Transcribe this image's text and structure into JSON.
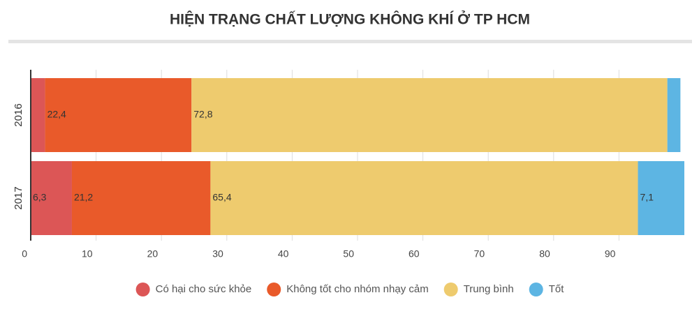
{
  "chart_data": {
    "type": "stacked-bar-horizontal",
    "title": "HIỆN TRẠNG CHẤT LƯỢNG KHÔNG KHÍ Ở TP HCM",
    "categories": [
      "2016",
      "2017"
    ],
    "series": [
      {
        "name": "Có hại cho sức khỏe",
        "color": "#dc5656",
        "values": [
          2.2,
          6.3
        ],
        "value_labels": [
          null,
          "6,3"
        ]
      },
      {
        "name": "Không tốt cho nhóm nhạy cảm",
        "color": "#e95a2a",
        "values": [
          22.4,
          21.2
        ],
        "value_labels": [
          "22,4",
          "21,2"
        ]
      },
      {
        "name": "Trung bình",
        "color": "#eecb6e",
        "values": [
          72.8,
          65.4
        ],
        "value_labels": [
          "72,8",
          "65,4"
        ]
      },
      {
        "name": "Tốt",
        "color": "#5db5e3",
        "values": [
          2.0,
          7.1
        ],
        "value_labels": [
          null,
          "7,1"
        ]
      }
    ],
    "xlim": [
      0,
      100
    ],
    "xticks": [
      0,
      10,
      20,
      30,
      40,
      50,
      60,
      70,
      80,
      90
    ],
    "grid": true,
    "legend": "bottom"
  }
}
